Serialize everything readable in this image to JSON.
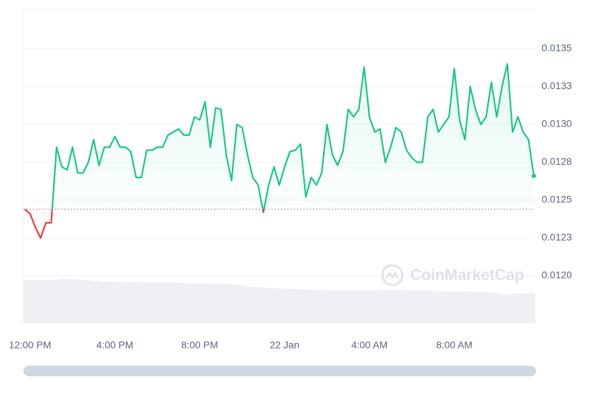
{
  "chart_data": {
    "type": "line",
    "watermark": "CoinMarketCap",
    "categories": [
      null,
      "12:00 PM",
      null,
      null,
      null,
      null,
      null,
      null,
      null,
      null,
      null,
      null,
      null,
      null,
      null,
      null,
      null,
      "4:00 PM",
      null,
      null,
      null,
      null,
      null,
      null,
      null,
      null,
      null,
      null,
      null,
      null,
      null,
      null,
      null,
      "8:00 PM",
      null,
      null,
      null,
      null,
      null,
      null,
      null,
      null,
      null,
      null,
      null,
      null,
      null,
      null,
      null,
      "22 Jan",
      null,
      null,
      null,
      null,
      null,
      null,
      null,
      null,
      null,
      null,
      null,
      null,
      null,
      null,
      null,
      "4:00 AM",
      null,
      null,
      null,
      null,
      null,
      null,
      null,
      null,
      null,
      null,
      null,
      null,
      null,
      null,
      null,
      "8:00 AM",
      null,
      null,
      null,
      null,
      null,
      null,
      null,
      null,
      null,
      null,
      null,
      null,
      null,
      null,
      null
    ],
    "values": [
      0.01244,
      0.01241,
      0.01232,
      0.01225,
      0.01235,
      0.01235,
      0.01285,
      0.01272,
      0.0127,
      0.01285,
      0.01268,
      0.01268,
      0.01275,
      0.0129,
      0.01273,
      0.01285,
      0.01285,
      0.01292,
      0.01285,
      0.01285,
      0.01282,
      0.01265,
      0.01265,
      0.01283,
      0.01283,
      0.01285,
      0.01285,
      0.01293,
      0.01295,
      0.01297,
      0.01293,
      0.01293,
      0.01305,
      0.01303,
      0.01315,
      0.01285,
      0.01311,
      0.0131,
      0.0128,
      0.01263,
      0.013,
      0.01298,
      0.0128,
      0.01265,
      0.0126,
      0.01242,
      0.0126,
      0.01272,
      0.0126,
      0.01272,
      0.01282,
      0.01283,
      0.01287,
      0.01252,
      0.01265,
      0.0126,
      0.01268,
      0.013,
      0.0128,
      0.01273,
      0.01282,
      0.0131,
      0.01305,
      0.0131,
      0.01338,
      0.01305,
      0.01295,
      0.01297,
      0.01275,
      0.01285,
      0.01298,
      0.01295,
      0.01283,
      0.01278,
      0.01275,
      0.01275,
      0.01305,
      0.0131,
      0.01295,
      0.013,
      0.01305,
      0.01337,
      0.01303,
      0.0129,
      0.01325,
      0.0131,
      0.013,
      0.01305,
      0.01328,
      0.01305,
      0.01325,
      0.0134,
      0.01295,
      0.01305,
      0.01295,
      0.0129,
      0.01266
    ],
    "reference_value": 0.01244,
    "up_color": "#16c784",
    "down_color": "#ea3943",
    "ylim": [
      0.0118,
      0.01375
    ],
    "yticks": [
      {
        "value": 0.012,
        "label": "0.0120"
      },
      {
        "value": 0.01225,
        "label": "0.0123"
      },
      {
        "value": 0.0125,
        "label": "0.0125"
      },
      {
        "value": 0.01275,
        "label": "0.0128"
      },
      {
        "value": 0.013,
        "label": "0.0130"
      },
      {
        "value": 0.01325,
        "label": "0.0133"
      },
      {
        "value": 0.0135,
        "label": "0.0135"
      }
    ],
    "grid": true
  }
}
